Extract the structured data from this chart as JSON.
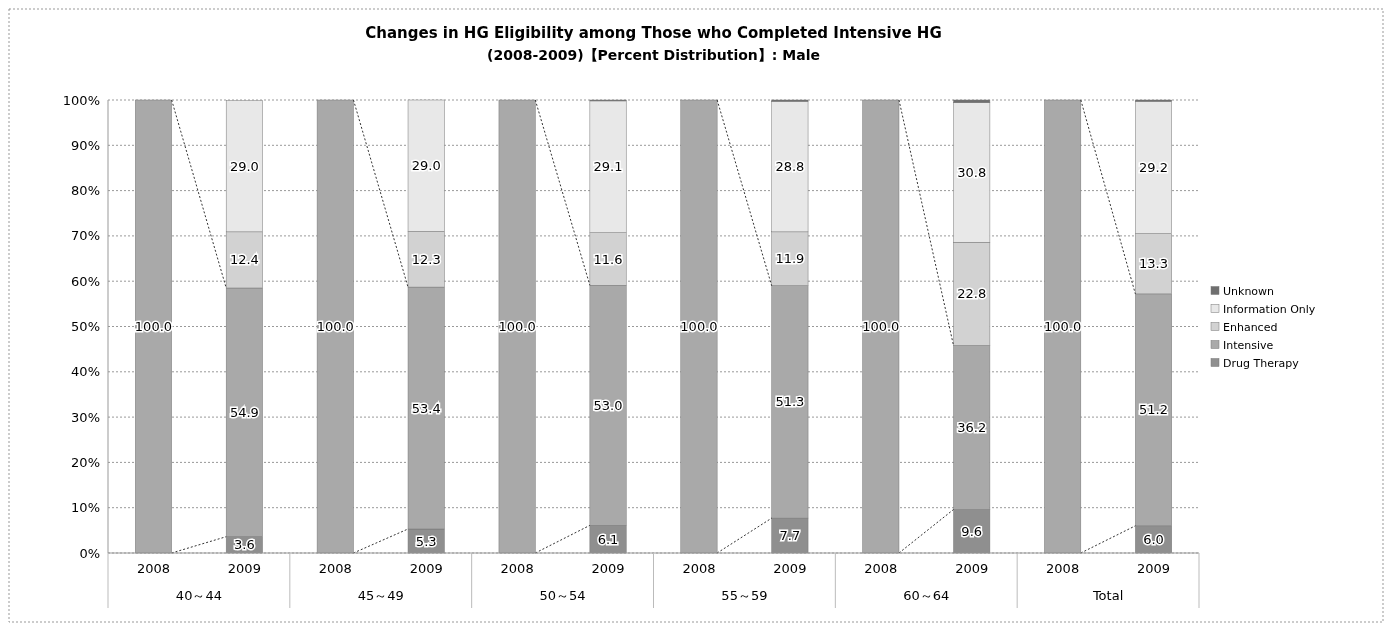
{
  "chart_data": {
    "type": "bar",
    "stacked": true,
    "title": "Changes in HG Eligibility among Those who Completed Intensive HG",
    "subtitle": "(2008-2009)【Percent Distribution】: Male",
    "categories": [
      "2008",
      "2009",
      "2008",
      "2009",
      "2008",
      "2009",
      "2008",
      "2009",
      "2008",
      "2009",
      "2008",
      "2009"
    ],
    "series": [
      {
        "name": "Drug Therapy",
        "color": "#8f8f8f",
        "values": [
          0,
          3.6,
          0,
          5.3,
          0,
          6.1,
          0,
          7.7,
          0,
          9.6,
          0,
          6.0
        ],
        "value_labels": [
          null,
          "3.6",
          null,
          "5.3",
          null,
          "6.1",
          null,
          "7.7",
          null,
          "9.6",
          null,
          "6.0"
        ]
      },
      {
        "name": "Intensive",
        "color": "#a9a9a9",
        "values": [
          100,
          54.9,
          100,
          53.4,
          100,
          53.0,
          100,
          51.3,
          100,
          36.2,
          100,
          51.2
        ],
        "value_labels": [
          "100.0",
          "54.9",
          "100.0",
          "53.4",
          "100.0",
          "53.0",
          "100.0",
          "51.3",
          "100.0",
          "36.2",
          "100.0",
          "51.2"
        ]
      },
      {
        "name": "Enhanced",
        "color": "#d2d2d2",
        "values": [
          0,
          12.4,
          0,
          12.3,
          0,
          11.6,
          0,
          11.9,
          0,
          22.8,
          0,
          13.3
        ],
        "value_labels": [
          null,
          "12.4",
          null,
          "12.3",
          null,
          "11.6",
          null,
          "11.9",
          null,
          "22.8",
          null,
          "13.3"
        ]
      },
      {
        "name": "Information Only",
        "color": "#e8e8e8",
        "values": [
          0,
          29.0,
          0,
          29.0,
          0,
          29.1,
          0,
          28.8,
          0,
          30.8,
          0,
          29.2
        ],
        "value_labels": [
          null,
          "29.0",
          null,
          "29.0",
          null,
          "29.1",
          null,
          "28.8",
          null,
          "30.8",
          null,
          "29.2"
        ]
      },
      {
        "name": "Unknown",
        "color": "#6f6f6f",
        "values": [
          0,
          null,
          0,
          0,
          0,
          0.2,
          0,
          0.3,
          0,
          0.6,
          0,
          0.3
        ],
        "value_labels": [
          null,
          null,
          null,
          null,
          null,
          null,
          null,
          null,
          null,
          null,
          null,
          null
        ]
      }
    ],
    "annotations": [
      "40～44",
      "45～49",
      "50～54",
      "55～59",
      "60～64",
      "Total"
    ],
    "ylim": [
      0,
      100
    ],
    "yticks": [
      {
        "value": 0,
        "label": "0%"
      },
      {
        "value": 10,
        "label": "10%"
      },
      {
        "value": 20,
        "label": "20%"
      },
      {
        "value": 30,
        "label": "30%"
      },
      {
        "value": 40,
        "label": "40%"
      },
      {
        "value": 50,
        "label": "50%"
      },
      {
        "value": 60,
        "label": "60%"
      },
      {
        "value": 70,
        "label": "70%"
      },
      {
        "value": 80,
        "label": "80%"
      },
      {
        "value": 90,
        "label": "90%"
      },
      {
        "value": 100,
        "label": "100%"
      }
    ],
    "grid": "y",
    "legend": "right"
  }
}
